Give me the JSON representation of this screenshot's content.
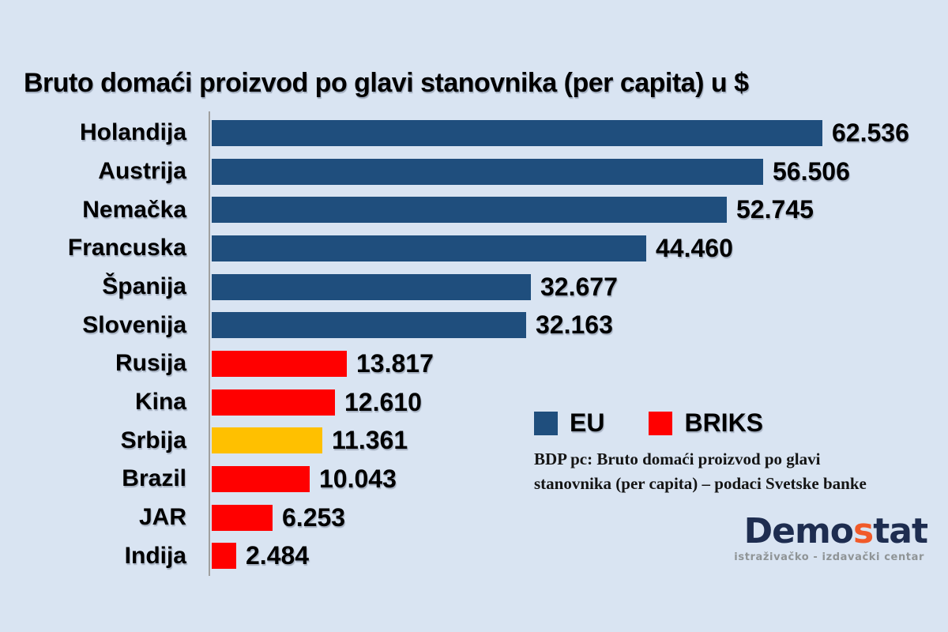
{
  "background_color": "#d9e4f2",
  "axis_color": "#a0a0a0",
  "chart_data": {
    "type": "bar",
    "orientation": "horizontal",
    "title": "Bruto domaći proizvod po glavi stanovnika (per capita) u $",
    "categories": [
      "Holandija",
      "Austrija",
      "Nemačka",
      "Francuska",
      "Španija",
      "Slovenija",
      "Rusija",
      "Kina",
      "Srbija",
      "Brazil",
      "JAR",
      "Indija"
    ],
    "values": [
      62536,
      56506,
      52745,
      44460,
      32677,
      32163,
      13817,
      12610,
      11361,
      10043,
      6253,
      2484
    ],
    "value_labels": [
      "62.536",
      "56.506",
      "52.745",
      "44.460",
      "32.677",
      "32.163",
      "13.817",
      "12.610",
      "11.361",
      "10.043",
      "6.253",
      "2.484"
    ],
    "groups": [
      "EU",
      "EU",
      "EU",
      "EU",
      "EU",
      "EU",
      "BRIKS",
      "BRIKS",
      "Srbija",
      "BRIKS",
      "BRIKS",
      "BRIKS"
    ],
    "colors": {
      "EU": "#1f4e7d",
      "BRIKS": "#ff0000",
      "Srbija": "#ffc000"
    },
    "xlim": [
      0,
      62536
    ],
    "grid": false,
    "legend_position": "right-middle",
    "legend": [
      {
        "label": "EU",
        "color": "#1f4e7d"
      },
      {
        "label": "BRIKS",
        "color": "#ff0000"
      }
    ],
    "note_lines": [
      "BDP pc: Bruto domaći proizvod po glavi",
      "stanovnika (per capita) – podaci Svetske banke"
    ]
  },
  "logo": {
    "brand_prefix": "Demo",
    "brand_accent": "s",
    "brand_suffix": "tat",
    "subtitle": "istraživačko - izdavački centar",
    "navy": "#1e2d50",
    "orange": "#f15a29",
    "gray": "#8f9496"
  }
}
